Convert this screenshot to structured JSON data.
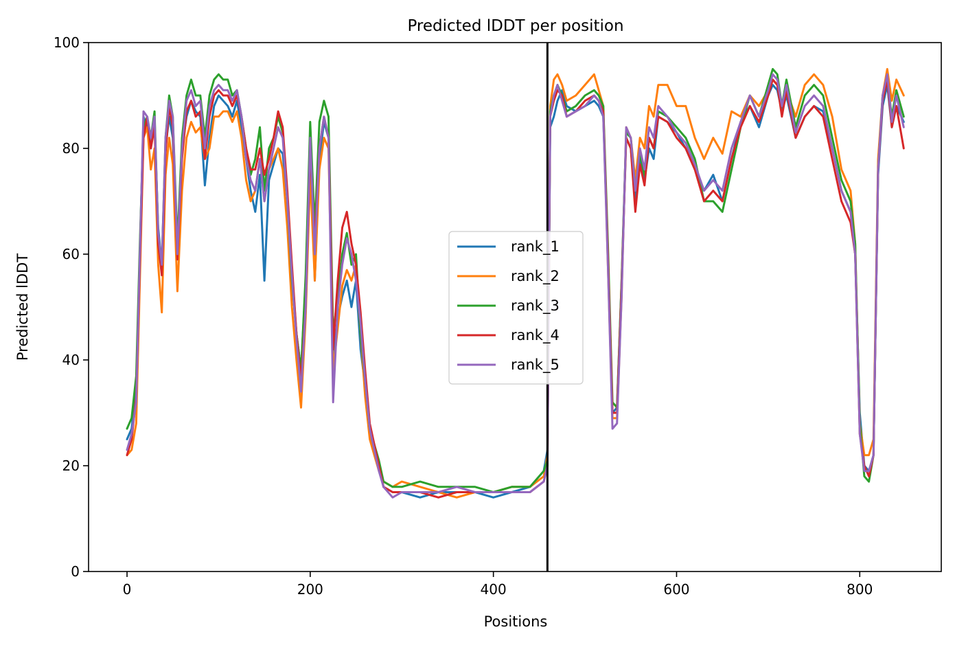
{
  "chart_data": {
    "type": "line",
    "title": "Predicted lDDT per position",
    "xlabel": "Positions",
    "ylabel": "Predicted lDDT",
    "xlim": [
      -42,
      889
    ],
    "ylim": [
      0,
      100
    ],
    "xticks": [
      0,
      200,
      400,
      600,
      800
    ],
    "yticks": [
      0,
      20,
      40,
      60,
      80,
      100
    ],
    "grid": false,
    "legend_position": "center",
    "vertical_line": {
      "x": 459,
      "color": "#000000"
    },
    "series_x": [
      0,
      5,
      10,
      14,
      18,
      22,
      26,
      30,
      34,
      38,
      42,
      46,
      50,
      55,
      60,
      65,
      70,
      75,
      80,
      85,
      90,
      95,
      100,
      105,
      110,
      115,
      120,
      125,
      130,
      135,
      140,
      145,
      150,
      155,
      160,
      165,
      170,
      175,
      180,
      185,
      190,
      195,
      200,
      205,
      210,
      215,
      220,
      225,
      230,
      235,
      240,
      245,
      250,
      255,
      260,
      265,
      270,
      275,
      280,
      290,
      300,
      320,
      340,
      360,
      380,
      400,
      420,
      440,
      455,
      459,
      462,
      466,
      470,
      475,
      480,
      490,
      500,
      510,
      515,
      520,
      525,
      530,
      535,
      540,
      545,
      550,
      555,
      560,
      565,
      570,
      575,
      580,
      590,
      600,
      610,
      620,
      630,
      640,
      650,
      660,
      670,
      680,
      690,
      700,
      705,
      710,
      715,
      720,
      730,
      740,
      750,
      760,
      770,
      780,
      790,
      795,
      800,
      805,
      810,
      815,
      820,
      825,
      830,
      835,
      840,
      848
    ],
    "series": [
      {
        "name": "rank_1",
        "color": "#1f77b4",
        "values": [
          25,
          27,
          35,
          60,
          86,
          84,
          80,
          85,
          65,
          58,
          80,
          86,
          82,
          60,
          80,
          86,
          89,
          87,
          86,
          73,
          82,
          88,
          90,
          89,
          88,
          86,
          89,
          84,
          78,
          72,
          68,
          75,
          55,
          74,
          77,
          80,
          79,
          70,
          57,
          45,
          38,
          55,
          82,
          55,
          78,
          85,
          82,
          40,
          48,
          52,
          55,
          50,
          55,
          42,
          35,
          26,
          23,
          20,
          16,
          15,
          15,
          14,
          15,
          15,
          15,
          14,
          15,
          16,
          19,
          23,
          84,
          86,
          89,
          91,
          88,
          87,
          88,
          89,
          88,
          86,
          60,
          30,
          31,
          55,
          82,
          80,
          70,
          78,
          74,
          80,
          78,
          86,
          85,
          83,
          80,
          76,
          72,
          75,
          70,
          78,
          85,
          88,
          84,
          90,
          92,
          91,
          87,
          90,
          82,
          86,
          88,
          87,
          80,
          72,
          68,
          60,
          30,
          20,
          19,
          22,
          75,
          88,
          92,
          84,
          88,
          85
        ]
      },
      {
        "name": "rank_2",
        "color": "#ff7f0e",
        "values": [
          22,
          23,
          28,
          55,
          82,
          84,
          76,
          80,
          58,
          49,
          75,
          82,
          77,
          53,
          72,
          82,
          85,
          83,
          84,
          78,
          80,
          86,
          86,
          87,
          87,
          85,
          87,
          82,
          74,
          70,
          72,
          78,
          70,
          76,
          78,
          80,
          76,
          65,
          50,
          40,
          31,
          48,
          75,
          55,
          76,
          82,
          80,
          38,
          46,
          54,
          57,
          55,
          58,
          45,
          33,
          25,
          22,
          19,
          17,
          16,
          17,
          16,
          15,
          14,
          15,
          15,
          16,
          16,
          18,
          22,
          88,
          93,
          94,
          92,
          89,
          90,
          92,
          94,
          91,
          88,
          58,
          29,
          29,
          52,
          84,
          82,
          74,
          82,
          80,
          88,
          86,
          92,
          92,
          88,
          88,
          82,
          78,
          82,
          79,
          87,
          86,
          90,
          88,
          91,
          93,
          92,
          88,
          91,
          86,
          92,
          94,
          92,
          86,
          76,
          72,
          62,
          28,
          22,
          22,
          25,
          78,
          90,
          95,
          89,
          93,
          90
        ]
      },
      {
        "name": "rank_3",
        "color": "#2ca02c",
        "values": [
          27,
          29,
          37,
          62,
          84,
          86,
          82,
          87,
          64,
          58,
          82,
          90,
          86,
          62,
          82,
          90,
          93,
          90,
          90,
          82,
          90,
          93,
          94,
          93,
          93,
          90,
          91,
          86,
          80,
          75,
          78,
          84,
          72,
          80,
          82,
          86,
          83,
          70,
          55,
          45,
          38,
          56,
          85,
          65,
          85,
          89,
          86,
          45,
          52,
          60,
          64,
          58,
          60,
          45,
          36,
          27,
          24,
          21,
          17,
          16,
          16,
          17,
          16,
          16,
          16,
          15,
          16,
          16,
          19,
          21,
          87,
          90,
          92,
          90,
          87,
          88,
          90,
          91,
          90,
          88,
          62,
          32,
          31,
          55,
          83,
          82,
          72,
          79,
          75,
          82,
          80,
          87,
          86,
          84,
          82,
          78,
          70,
          70,
          68,
          76,
          84,
          90,
          86,
          92,
          95,
          94,
          88,
          93,
          84,
          90,
          92,
          90,
          82,
          74,
          70,
          62,
          28,
          18,
          17,
          22,
          76,
          90,
          93,
          86,
          91,
          86
        ]
      },
      {
        "name": "rank_4",
        "color": "#d62728",
        "values": [
          22,
          25,
          33,
          58,
          82,
          86,
          80,
          84,
          62,
          56,
          79,
          88,
          84,
          59,
          78,
          87,
          89,
          86,
          87,
          78,
          86,
          90,
          91,
          90,
          90,
          88,
          90,
          86,
          80,
          76,
          76,
          80,
          75,
          78,
          82,
          87,
          84,
          72,
          58,
          45,
          36,
          50,
          80,
          62,
          80,
          86,
          82,
          42,
          55,
          65,
          68,
          62,
          58,
          49,
          38,
          28,
          24,
          20,
          16,
          15,
          15,
          15,
          14,
          15,
          15,
          15,
          15,
          15,
          17,
          20,
          86,
          89,
          91,
          90,
          86,
          87,
          89,
          90,
          89,
          87,
          60,
          30,
          30,
          54,
          82,
          80,
          68,
          77,
          73,
          82,
          80,
          86,
          85,
          82,
          80,
          76,
          70,
          72,
          70,
          78,
          84,
          88,
          85,
          90,
          93,
          92,
          86,
          91,
          82,
          86,
          88,
          86,
          78,
          70,
          66,
          60,
          26,
          20,
          18,
          22,
          76,
          89,
          93,
          84,
          88,
          80
        ]
      },
      {
        "name": "rank_5",
        "color": "#9467bd",
        "values": [
          23,
          26,
          32,
          60,
          87,
          86,
          82,
          86,
          64,
          58,
          82,
          89,
          86,
          60,
          80,
          89,
          91,
          88,
          89,
          80,
          88,
          91,
          92,
          91,
          91,
          89,
          91,
          86,
          78,
          74,
          72,
          78,
          70,
          76,
          80,
          84,
          82,
          70,
          56,
          44,
          34,
          50,
          82,
          60,
          80,
          86,
          82,
          32,
          50,
          58,
          63,
          60,
          55,
          47,
          36,
          27,
          23,
          19,
          16,
          14,
          15,
          15,
          15,
          16,
          15,
          15,
          15,
          15,
          17,
          20,
          86,
          90,
          92,
          89,
          86,
          87,
          88,
          90,
          89,
          86,
          58,
          27,
          28,
          52,
          84,
          82,
          72,
          80,
          76,
          84,
          82,
          88,
          86,
          83,
          81,
          77,
          72,
          74,
          72,
          80,
          85,
          90,
          86,
          91,
          94,
          93,
          88,
          92,
          83,
          88,
          90,
          88,
          80,
          72,
          68,
          60,
          26,
          19,
          19,
          22,
          76,
          90,
          94,
          85,
          90,
          84
        ]
      }
    ]
  }
}
